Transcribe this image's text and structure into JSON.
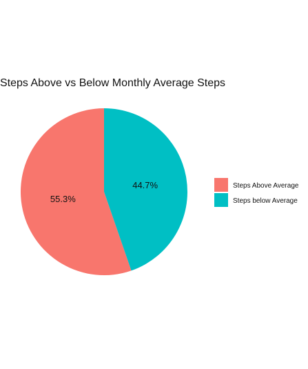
{
  "chart_data": {
    "type": "pie",
    "title": "Steps Above vs Below Monthly Average Steps",
    "slices": [
      {
        "name": "Steps Above Average",
        "value": 55.3,
        "label": "55.3%",
        "color": "#F8766D"
      },
      {
        "name": "Steps below Average",
        "value": 44.7,
        "label": "44.7%",
        "color": "#00BFC4"
      }
    ],
    "legend": {
      "position": "right"
    }
  }
}
